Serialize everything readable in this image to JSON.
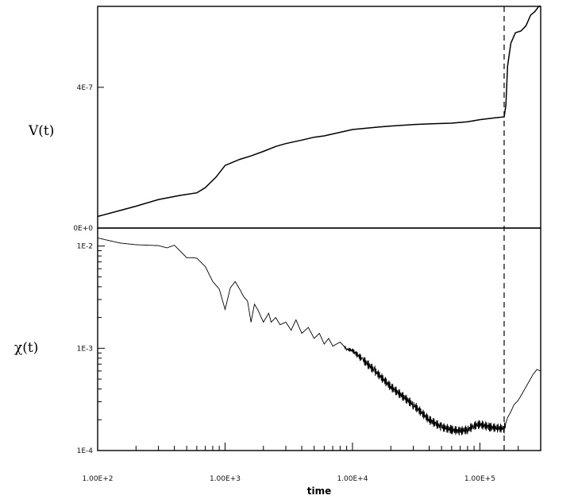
{
  "chart_data": [
    {
      "type": "line",
      "panel": "top",
      "ylabel": "V(t)",
      "xscale": "log",
      "xlim": [
        100,
        300000
      ],
      "ylim": [
        0,
        6.3e-07
      ],
      "yticks": [
        {
          "v": 0,
          "label": "0E+0"
        },
        {
          "v": 4e-07,
          "label": "4E-7"
        }
      ],
      "series": [
        {
          "x": [
            100,
            150,
            200,
            300,
            450,
            600,
            700,
            850,
            1000,
            1300,
            1600,
            2000,
            2500,
            3000,
            4000,
            5000,
            6000,
            8000,
            10000,
            13000,
            16000,
            20000,
            30000,
            40000,
            60000,
            80000,
            100000,
            130000,
            155000,
            160000,
            165000,
            175000,
            190000,
            210000,
            230000,
            250000,
            270000,
            290000,
            300000
          ],
          "y": [
            3.3e-08,
            5e-08,
            6.2e-08,
            8.1e-08,
            9.3e-08,
            1e-07,
            1.15e-07,
            1.45e-07,
            1.78e-07,
            1.95e-07,
            2.05e-07,
            2.18e-07,
            2.32e-07,
            2.4e-07,
            2.5e-07,
            2.58e-07,
            2.62e-07,
            2.72e-07,
            2.8e-07,
            2.84e-07,
            2.87e-07,
            2.9e-07,
            2.94e-07,
            2.96e-07,
            2.98e-07,
            3.02e-07,
            3.08e-07,
            3.13e-07,
            3.16e-07,
            3.5e-07,
            4.6e-07,
            5.25e-07,
            5.55e-07,
            5.6e-07,
            5.75e-07,
            6.05e-07,
            6.15e-07,
            6.3e-07,
            6.3e-07
          ]
        }
      ]
    },
    {
      "type": "line",
      "panel": "bottom",
      "xlabel": "time",
      "ylabel": "χ(t)",
      "xscale": "log",
      "yscale": "log",
      "xlim": [
        100,
        300000
      ],
      "ylim": [
        0.0001,
        0.015
      ],
      "xticks": [
        {
          "v": 100,
          "label": "1.00E+2"
        },
        {
          "v": 1000,
          "label": "1.00E+3"
        },
        {
          "v": 10000,
          "label": "1.00E+4"
        },
        {
          "v": 100000,
          "label": "1.00E+5"
        }
      ],
      "yticks": [
        {
          "v": 0.0001,
          "label": "1E-4"
        },
        {
          "v": 0.001,
          "label": "1E-3"
        },
        {
          "v": 0.01,
          "label": "1E-2"
        }
      ],
      "series": [
        {
          "x": [
            100,
            150,
            200,
            300,
            350,
            400,
            500,
            550,
            600,
            700,
            800,
            900,
            1000,
            1100,
            1200,
            1300,
            1400,
            1500,
            1600,
            1700,
            1800,
            2000,
            2200,
            2300,
            2500,
            2700,
            3000,
            3300,
            3600,
            4000,
            4500,
            5000,
            5500,
            6000,
            6500,
            7000,
            8000,
            9000,
            10000,
            12000,
            15000,
            20000,
            30000,
            40000,
            50000,
            60000,
            70000,
            80000,
            90000,
            100000,
            120000,
            140000,
            155000,
            165000,
            175000,
            185000,
            200000,
            220000,
            240000,
            260000,
            280000,
            300000
          ],
          "y": [
            0.012,
            0.0107,
            0.0103,
            0.0101,
            0.0096,
            0.0102,
            0.0077,
            0.0077,
            0.0076,
            0.0063,
            0.0045,
            0.0038,
            0.0024,
            0.0039,
            0.0045,
            0.0038,
            0.0032,
            0.0029,
            0.0018,
            0.0027,
            0.0024,
            0.0018,
            0.0022,
            0.0018,
            0.002,
            0.0017,
            0.0018,
            0.0015,
            0.0019,
            0.0014,
            0.0016,
            0.00125,
            0.0014,
            0.0011,
            0.00125,
            0.00105,
            0.00115,
            0.00098,
            0.00095,
            0.00078,
            0.0006,
            0.00042,
            0.00028,
            0.0002,
            0.00017,
            0.00016,
            0.000155,
            0.00016,
            0.000175,
            0.00018,
            0.00017,
            0.000165,
            0.000165,
            0.00021,
            0.00024,
            0.00028,
            0.00031,
            0.00038,
            0.00046,
            0.00055,
            0.00062,
            0.0006
          ]
        }
      ],
      "annotations": [
        "dashed vertical line at time ≈ 1.55E+5 spanning both panels"
      ]
    }
  ]
}
